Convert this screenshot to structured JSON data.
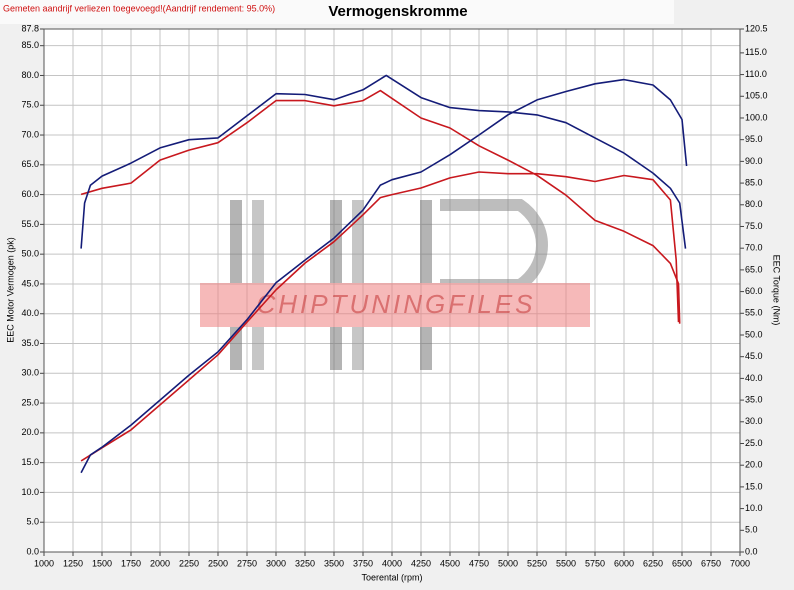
{
  "chart_data": {
    "type": "line",
    "title": "Vermogenskromme",
    "subtitle": "Gemeten aandrijf verliezen toegevoegd!(Aandrijf rendement: 95.0%)",
    "watermark": "CHIPTUNINGFILES",
    "x_label": "Toerental (rpm)",
    "y_label": "EEC Motor Vermogen (pk)",
    "y2_label": "EEC Torque (Nm)",
    "grid": true,
    "xlim": [
      1000,
      7000
    ],
    "xticks": [
      1000,
      1250,
      1500,
      1750,
      2000,
      2250,
      2500,
      2750,
      3000,
      3250,
      3500,
      3750,
      4000,
      4250,
      4500,
      4750,
      5000,
      5250,
      5500,
      5750,
      6000,
      6250,
      6500,
      6750,
      7000
    ],
    "ylim": [
      0,
      87.8
    ],
    "yticks": [
      {
        "value": 0,
        "label": "0.0"
      },
      {
        "value": 5,
        "label": "5.0"
      },
      {
        "value": 10,
        "label": "10.0"
      },
      {
        "value": 15,
        "label": "15.0"
      },
      {
        "value": 20,
        "label": "20.0"
      },
      {
        "value": 25,
        "label": "25.0"
      },
      {
        "value": 30,
        "label": "30.0"
      },
      {
        "value": 35,
        "label": "35.0"
      },
      {
        "value": 40,
        "label": "40.0"
      },
      {
        "value": 45,
        "label": "45.0"
      },
      {
        "value": 50,
        "label": "50.0"
      },
      {
        "value": 55,
        "label": "55.0"
      },
      {
        "value": 60,
        "label": "60.0"
      },
      {
        "value": 65,
        "label": "65.0"
      },
      {
        "value": 70,
        "label": "70.0"
      },
      {
        "value": 75,
        "label": "75.0"
      },
      {
        "value": 80,
        "label": "80.0"
      },
      {
        "value": 85,
        "label": "85.0"
      },
      87.8
    ],
    "y2lim": [
      0,
      120.5
    ],
    "y2ticks": [
      {
        "value": 0,
        "label": "0.0"
      },
      {
        "value": 5,
        "label": "5.0"
      },
      {
        "value": 10,
        "label": "10.0"
      },
      {
        "value": 15,
        "label": "15.0"
      },
      {
        "value": 20,
        "label": "20.0"
      },
      {
        "value": 25,
        "label": "25.0"
      },
      {
        "value": 30,
        "label": "30.0"
      },
      {
        "value": 35,
        "label": "35.0"
      },
      {
        "value": 40,
        "label": "40.0"
      },
      {
        "value": 45,
        "label": "45.0"
      },
      {
        "value": 50,
        "label": "50.0"
      },
      {
        "value": 55,
        "label": "55.0"
      },
      {
        "value": 60,
        "label": "60.0"
      },
      {
        "value": 65,
        "label": "65.0"
      },
      {
        "value": 70,
        "label": "70.0"
      },
      {
        "value": 75,
        "label": "75.0"
      },
      {
        "value": 80,
        "label": "80.0"
      },
      {
        "value": 85,
        "label": "85.0"
      },
      {
        "value": 90,
        "label": "90.0"
      },
      {
        "value": 95,
        "label": "95.0"
      },
      {
        "value": 100,
        "label": "100.0"
      },
      {
        "value": 105,
        "label": "105.0"
      },
      {
        "value": 110,
        "label": "110.0"
      },
      {
        "value": 115,
        "label": "115.0"
      },
      120.5
    ],
    "series": [
      {
        "color": "#c8181e",
        "axis": "y2",
        "x": [
          1320,
          1500,
          1750,
          2000,
          2250,
          2500,
          2750,
          3000,
          3250,
          3500,
          3750,
          3900,
          4250,
          4500,
          4750,
          5000,
          5250,
          5500,
          5750,
          6000,
          6250,
          6400,
          6470,
          6480
        ],
        "values": [
          82.4,
          83.8,
          85,
          90.3,
          92.6,
          94.3,
          98.9,
          104,
          104,
          102.8,
          104,
          106.3,
          100,
          97.7,
          93.6,
          90.3,
          86.8,
          82.2,
          76.4,
          73.9,
          70.6,
          66.5,
          61.8,
          52.6
        ]
      },
      {
        "color": "#c8181e",
        "x": [
          1320,
          1500,
          1750,
          2000,
          2250,
          2500,
          2750,
          3000,
          3250,
          3500,
          3750,
          3900,
          4000,
          4250,
          4500,
          4750,
          5000,
          5250,
          5500,
          5750,
          6000,
          6250,
          6400,
          6450,
          6470
        ],
        "values": [
          15.3,
          17.5,
          20.5,
          24.7,
          28.9,
          33.1,
          38.6,
          44,
          48.5,
          52.1,
          56.6,
          59.5,
          60,
          61.1,
          62.8,
          63.8,
          63.5,
          63.5,
          63,
          62.2,
          63.2,
          62.5,
          59.1,
          49,
          38.6
        ]
      },
      {
        "color": "#141c78",
        "axis": "y2",
        "x": [
          1320,
          1350,
          1400,
          1500,
          1750,
          2000,
          2250,
          2500,
          2750,
          3000,
          3250,
          3500,
          3750,
          3950,
          4250,
          4500,
          4750,
          5000,
          5250,
          5500,
          5750,
          6000,
          6250,
          6400,
          6480,
          6530
        ],
        "values": [
          69.9,
          80.4,
          84.5,
          86.6,
          89.6,
          93.1,
          95,
          95.4,
          100.5,
          105.6,
          105.4,
          104.2,
          106.5,
          109.8,
          104.7,
          102.4,
          101.7,
          101.4,
          100.7,
          98.9,
          95.4,
          91.9,
          87.3,
          83.8,
          80.4,
          69.9
        ]
      },
      {
        "color": "#141c78",
        "x": [
          1320,
          1400,
          1500,
          1750,
          2000,
          2250,
          2500,
          2750,
          3000,
          3250,
          3500,
          3750,
          3900,
          4000,
          4250,
          4500,
          4750,
          5000,
          5250,
          5500,
          5750,
          6000,
          6250,
          6400,
          6500,
          6540
        ],
        "values": [
          13.3,
          16.3,
          17.6,
          21.3,
          25.5,
          29.7,
          33.6,
          39,
          45.2,
          49,
          52.7,
          57.4,
          61.6,
          62.5,
          63.8,
          66.7,
          70,
          73.4,
          75.9,
          77.3,
          78.6,
          79.3,
          78.4,
          75.9,
          72.6,
          64.8
        ]
      }
    ]
  }
}
